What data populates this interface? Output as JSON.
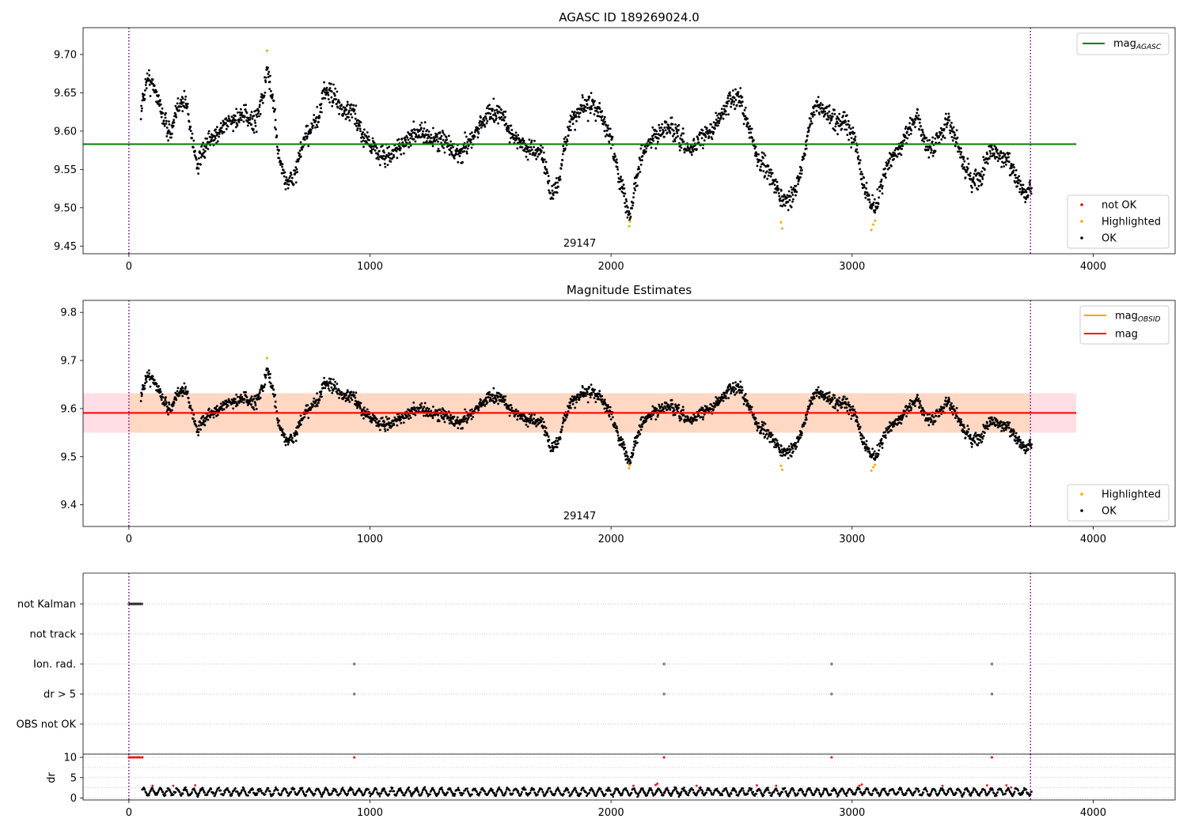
{
  "figure": {
    "title": "AGASC ID 189269024.0",
    "subtitle": "Magnitude Estimates",
    "obsid_label": "29147"
  },
  "colors": {
    "mag_agasc": "#008000",
    "mag_obsid": "#ffa500",
    "mag": "#ff0000",
    "not_ok": "#ff0000",
    "highlighted": "#ffa500",
    "ok": "#000000",
    "band_red": "#ffc0cb",
    "band_orange": "#ffd7bf",
    "obs_boundary": "#800080",
    "grid": "#b0b0b0"
  },
  "chart_data": [
    {
      "type": "scatter",
      "title": "AGASC ID 189269024.0",
      "xlim": [
        -190,
        4340
      ],
      "ylim": [
        9.44,
        9.735
      ],
      "xticks": [
        0,
        1000,
        2000,
        3000,
        4000
      ],
      "yticks": [
        9.45,
        9.5,
        9.55,
        9.6,
        9.65,
        9.7
      ],
      "ytick_labels": [
        "9.45",
        "9.50",
        "9.55",
        "9.60",
        "9.65",
        "9.70"
      ],
      "mag_agasc": 9.583,
      "mag_line_x": [
        -190,
        3930
      ],
      "obs_boundaries": [
        0,
        3740
      ],
      "annotation": {
        "text": "29147",
        "x": 1870
      },
      "legend_lines": [
        {
          "label": "mag",
          "sub": "AGASC",
          "color": "#008000"
        }
      ],
      "legend_points": [
        {
          "label": "not OK",
          "color": "#ff0000"
        },
        {
          "label": "Highlighted",
          "color": "#ffa500"
        },
        {
          "label": "OK",
          "color": "#000000"
        }
      ],
      "legend_placement": [
        "top-right",
        "bottom-right"
      ],
      "highlighted_points": [
        [
          573,
          9.705
        ],
        [
          2075,
          9.476
        ],
        [
          2078,
          9.482
        ],
        [
          2710,
          9.473
        ],
        [
          2705,
          9.481
        ],
        [
          3080,
          9.471
        ],
        [
          3088,
          9.478
        ],
        [
          3095,
          9.483
        ]
      ],
      "ok_series_knots": [
        [
          50,
          9.625
        ],
        [
          75,
          9.67
        ],
        [
          110,
          9.655
        ],
        [
          140,
          9.62
        ],
        [
          175,
          9.595
        ],
        [
          210,
          9.64
        ],
        [
          240,
          9.635
        ],
        [
          265,
          9.585
        ],
        [
          285,
          9.555
        ],
        [
          320,
          9.58
        ],
        [
          360,
          9.595
        ],
        [
          400,
          9.61
        ],
        [
          440,
          9.615
        ],
        [
          480,
          9.62
        ],
        [
          520,
          9.61
        ],
        [
          560,
          9.65
        ],
        [
          575,
          9.68
        ],
        [
          600,
          9.635
        ],
        [
          620,
          9.57
        ],
        [
          650,
          9.535
        ],
        [
          680,
          9.535
        ],
        [
          720,
          9.58
        ],
        [
          760,
          9.61
        ],
        [
          790,
          9.615
        ],
        [
          810,
          9.655
        ],
        [
          850,
          9.645
        ],
        [
          890,
          9.625
        ],
        [
          930,
          9.625
        ],
        [
          960,
          9.6
        ],
        [
          1000,
          9.585
        ],
        [
          1040,
          9.57
        ],
        [
          1080,
          9.565
        ],
        [
          1120,
          9.58
        ],
        [
          1160,
          9.59
        ],
        [
          1200,
          9.6
        ],
        [
          1250,
          9.59
        ],
        [
          1300,
          9.59
        ],
        [
          1340,
          9.575
        ],
        [
          1380,
          9.57
        ],
        [
          1420,
          9.59
        ],
        [
          1460,
          9.61
        ],
        [
          1500,
          9.625
        ],
        [
          1540,
          9.625
        ],
        [
          1580,
          9.6
        ],
        [
          1620,
          9.585
        ],
        [
          1660,
          9.575
        ],
        [
          1700,
          9.575
        ],
        [
          1730,
          9.555
        ],
        [
          1750,
          9.52
        ],
        [
          1780,
          9.525
        ],
        [
          1800,
          9.57
        ],
        [
          1830,
          9.61
        ],
        [
          1880,
          9.63
        ],
        [
          1920,
          9.635
        ],
        [
          1960,
          9.62
        ],
        [
          2000,
          9.59
        ],
        [
          2030,
          9.545
        ],
        [
          2060,
          9.51
        ],
        [
          2080,
          9.49
        ],
        [
          2100,
          9.53
        ],
        [
          2130,
          9.57
        ],
        [
          2170,
          9.59
        ],
        [
          2210,
          9.6
        ],
        [
          2250,
          9.605
        ],
        [
          2290,
          9.585
        ],
        [
          2330,
          9.575
        ],
        [
          2370,
          9.59
        ],
        [
          2410,
          9.6
        ],
        [
          2450,
          9.615
        ],
        [
          2490,
          9.64
        ],
        [
          2530,
          9.645
        ],
        [
          2570,
          9.61
        ],
        [
          2600,
          9.57
        ],
        [
          2640,
          9.555
        ],
        [
          2680,
          9.53
        ],
        [
          2710,
          9.51
        ],
        [
          2750,
          9.515
        ],
        [
          2790,
          9.55
        ],
        [
          2820,
          9.6
        ],
        [
          2850,
          9.635
        ],
        [
          2890,
          9.625
        ],
        [
          2930,
          9.615
        ],
        [
          2970,
          9.61
        ],
        [
          3010,
          9.59
        ],
        [
          3040,
          9.54
        ],
        [
          3070,
          9.51
        ],
        [
          3100,
          9.5
        ],
        [
          3120,
          9.53
        ],
        [
          3150,
          9.56
        ],
        [
          3190,
          9.575
        ],
        [
          3230,
          9.6
        ],
        [
          3270,
          9.62
        ],
        [
          3300,
          9.585
        ],
        [
          3330,
          9.575
        ],
        [
          3360,
          9.595
        ],
        [
          3400,
          9.61
        ],
        [
          3440,
          9.58
        ],
        [
          3470,
          9.55
        ],
        [
          3500,
          9.535
        ],
        [
          3530,
          9.535
        ],
        [
          3570,
          9.575
        ],
        [
          3610,
          9.57
        ],
        [
          3650,
          9.56
        ],
        [
          3690,
          9.535
        ],
        [
          3720,
          9.515
        ],
        [
          3740,
          9.53
        ]
      ]
    },
    {
      "type": "scatter",
      "title": "Magnitude Estimates",
      "xlim": [
        -190,
        4340
      ],
      "ylim": [
        9.355,
        9.825
      ],
      "xticks": [
        0,
        1000,
        2000,
        3000,
        4000
      ],
      "yticks": [
        9.4,
        9.5,
        9.6,
        9.7,
        9.8
      ],
      "ytick_labels": [
        "9.4",
        "9.5",
        "9.6",
        "9.7",
        "9.8"
      ],
      "mag": 9.591,
      "mag_obsid": 9.591,
      "band_outer": [
        9.55,
        9.632
      ],
      "band_inner_x": [
        0,
        3740
      ],
      "line_x": [
        -190,
        3930
      ],
      "obs_boundaries": [
        0,
        3740
      ],
      "annotation": {
        "text": "29147",
        "x": 1870
      },
      "legend_lines": [
        {
          "label": "mag",
          "sub": "OBSID",
          "color": "#ffa500"
        },
        {
          "label": "mag",
          "sub": "",
          "color": "#ff0000"
        }
      ],
      "legend_points": [
        {
          "label": "Highlighted",
          "color": "#ffa500"
        },
        {
          "label": "OK",
          "color": "#000000"
        }
      ],
      "legend_placement": [
        "top-right",
        "bottom-right"
      ]
    },
    {
      "type": "scatter",
      "title": "",
      "xlim": [
        -190,
        4340
      ],
      "xticks": [
        0,
        1000,
        2000,
        3000,
        4000
      ],
      "flag_rows": [
        "not Kalman",
        "not track",
        "Ion. rad.",
        "dr > 5",
        "OBS not OK"
      ],
      "flag_points": {
        "not Kalman": [
          0,
          5,
          10,
          15,
          20,
          25,
          30,
          35,
          40,
          45,
          50,
          55
        ],
        "not track": [],
        "Ion. rad.": [
          935,
          2220,
          2915,
          3580
        ],
        "dr > 5": [
          935,
          2220,
          2915,
          3580
        ],
        "OBS not OK": []
      },
      "dr_ylim": [
        -0.5,
        10.8
      ],
      "dr_yticks": [
        0,
        5,
        10
      ],
      "dr_ylabel": "dr",
      "dr_outliers": [
        [
          0,
          10
        ],
        [
          8,
          10
        ],
        [
          16,
          10
        ],
        [
          24,
          10
        ],
        [
          32,
          10
        ],
        [
          40,
          10
        ],
        [
          48,
          10
        ],
        [
          56,
          10
        ],
        [
          935,
          10
        ],
        [
          2220,
          10
        ],
        [
          2915,
          10
        ],
        [
          3580,
          10
        ]
      ],
      "dr_red_points": [
        [
          98,
          3.0
        ],
        [
          184,
          3.0
        ],
        [
          275,
          3.1
        ],
        [
          2093,
          3.0
        ],
        [
          2185,
          3.2
        ],
        [
          2192,
          3.5
        ],
        [
          2355,
          3.0
        ],
        [
          2605,
          3.1
        ],
        [
          2685,
          3.0
        ],
        [
          3030,
          3.0
        ],
        [
          3040,
          3.3
        ],
        [
          3375,
          3.0
        ],
        [
          3560,
          3.1
        ],
        [
          3640,
          3.1
        ],
        [
          3660,
          2.6
        ]
      ],
      "dr_ok_range": [
        0.3,
        2.8
      ],
      "obs_boundaries": [
        0,
        3740
      ]
    }
  ]
}
